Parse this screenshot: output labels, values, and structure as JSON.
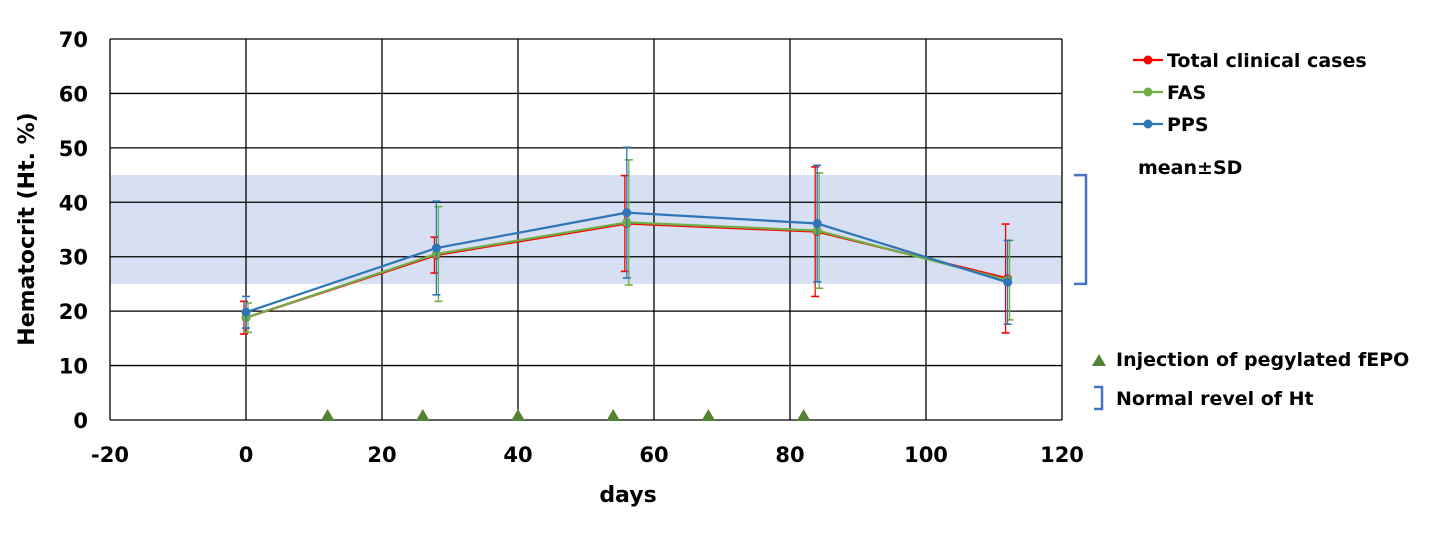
{
  "chart_data": {
    "type": "line",
    "xlabel": "days",
    "ylabel": "Hematocrit (Ht. %)",
    "xlim": [
      -20,
      120
    ],
    "ylim": [
      0,
      70
    ],
    "xticks": [
      -20,
      0,
      20,
      40,
      60,
      80,
      100,
      120
    ],
    "yticks": [
      0,
      10,
      20,
      30,
      40,
      50,
      60,
      70
    ],
    "grid": true,
    "legend_position": "right",
    "normal_range": {
      "y_from": 25,
      "y_to": 45,
      "color": "#d6e0f2"
    },
    "x": [
      0,
      28,
      56,
      84,
      112
    ],
    "series": [
      {
        "name": "Total clinical cases",
        "color": "#ff0000",
        "values": [
          18.8,
          30.3,
          36.1,
          34.6,
          26.0
        ],
        "sd": [
          3.0,
          3.3,
          8.8,
          11.9,
          10.0
        ]
      },
      {
        "name": "FAS",
        "color": "#70ad47",
        "values": [
          18.8,
          30.5,
          36.3,
          34.8,
          25.7
        ],
        "sd": [
          2.7,
          8.7,
          11.5,
          10.6,
          7.3
        ]
      },
      {
        "name": "PPS",
        "color": "#2e75b6",
        "values": [
          19.8,
          31.6,
          38.1,
          36.1,
          25.3
        ],
        "sd": [
          2.9,
          8.6,
          12.0,
          10.7,
          7.7
        ]
      }
    ],
    "injections": {
      "name": "Injection of pegylated fEPO",
      "color": "#548235",
      "days": [
        12,
        26,
        40,
        54,
        68,
        82
      ]
    },
    "annotations": {
      "sd_note": "mean±SD",
      "normal_label": "Normal revel of Ht"
    }
  }
}
